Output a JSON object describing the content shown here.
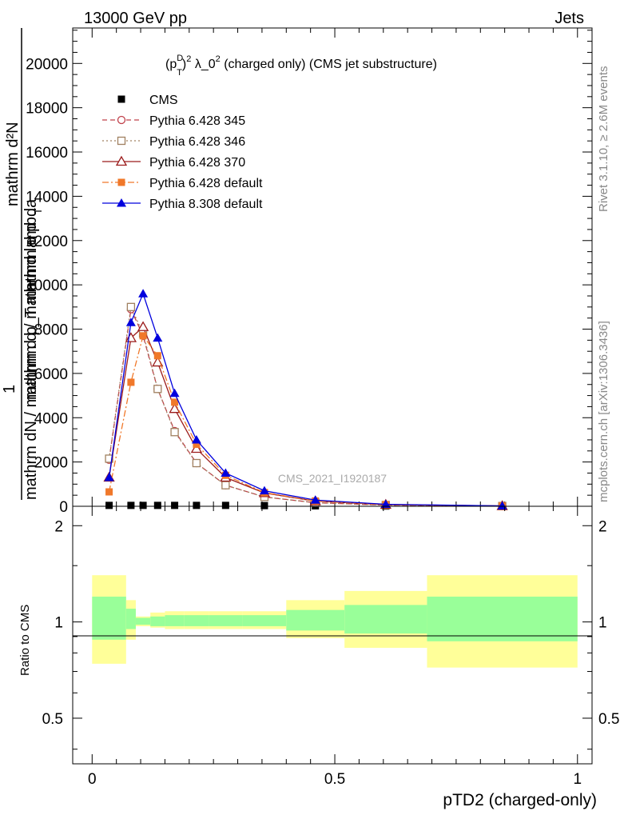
{
  "header": {
    "left": "13000 GeV pp",
    "right": "Jets"
  },
  "side_labels": {
    "rivet": "Rivet 3.1.10, ≥ 2.6M events",
    "mcplots": "mcplots.cern.ch [arXiv:1306.3436]"
  },
  "colors": {
    "cms": "#000000",
    "py345": "#c0404a",
    "py346": "#a08060",
    "py370": "#9b1b1b",
    "py6def": "#f0782a",
    "py8def": "#0000dd",
    "band_outer": "#ffff99",
    "band_inner": "#99ff99"
  },
  "chart_data": [
    {
      "type": "line",
      "title": "(p_T^D)^2 λ_0^2 (charged only) (CMS jet substructure)",
      "title_parts": {
        "base": "(p",
        "sup_d": "D",
        "sub_t": "T",
        "close": ")",
        "sup2": "2",
        "mid": " λ_0",
        "rest": " (charged only) (CMS jet substructure)"
      },
      "ylabel_lines": [
        "mathrm d²N",
        "mathrm d p",
        "mathrm d / mathrmd lambda",
        "1",
        "mathrm dN / mathrm d p_T"
      ],
      "ylabel_T": "T",
      "watermark": "CMS_2021_I1920187",
      "xlim": [
        -0.04,
        1.03
      ],
      "ylim": [
        0,
        21600
      ],
      "yticks": [
        0,
        2000,
        4000,
        6000,
        8000,
        10000,
        12000,
        14000,
        16000,
        18000,
        20000
      ],
      "ytick_labels": [
        "0",
        "2000",
        "4000",
        "6000",
        "8000",
        "10000",
        "12000",
        "14000",
        "16000",
        "18000",
        "20000"
      ],
      "legend_position": "top-left",
      "series": [
        {
          "name": "CMS",
          "color_key": "cms",
          "marker": "square",
          "dash": "",
          "x": [
            0.035,
            0.08,
            0.105,
            0.135,
            0.17,
            0.215,
            0.275,
            0.355,
            0.46,
            0.605,
            0.845
          ],
          "y": [
            40,
            40,
            40,
            40,
            40,
            40,
            40,
            30,
            20,
            10,
            5
          ]
        },
        {
          "name": "Pythia 6.428 345",
          "color_key": "py345",
          "marker": "circle-open",
          "dash": "6,4",
          "x": [
            0.035,
            0.08,
            0.105,
            0.135,
            0.17,
            0.215,
            0.275,
            0.355,
            0.46,
            0.605,
            0.845
          ],
          "y": [
            2100,
            8900,
            7700,
            5300,
            3400,
            1950,
            950,
            420,
            160,
            55,
            12
          ]
        },
        {
          "name": "Pythia 6.428 346",
          "color_key": "py346",
          "marker": "square-open",
          "dash": "2,3",
          "x": [
            0.035,
            0.08,
            0.105,
            0.135,
            0.17,
            0.215,
            0.275,
            0.355,
            0.46,
            0.605,
            0.845
          ],
          "y": [
            2150,
            9000,
            7800,
            5300,
            3350,
            1950,
            950,
            420,
            160,
            55,
            12
          ]
        },
        {
          "name": "Pythia 6.428 370",
          "color_key": "py370",
          "marker": "triangle-open",
          "dash": "",
          "x": [
            0.035,
            0.08,
            0.105,
            0.135,
            0.17,
            0.215,
            0.275,
            0.355,
            0.46,
            0.605,
            0.845
          ],
          "y": [
            1300,
            7600,
            8100,
            6500,
            4400,
            2600,
            1300,
            600,
            230,
            75,
            15
          ]
        },
        {
          "name": "Pythia 6.428 default",
          "color_key": "py6def",
          "marker": "square",
          "dash": "8,3,2,3",
          "x": [
            0.035,
            0.08,
            0.105,
            0.135,
            0.17,
            0.215,
            0.275,
            0.355,
            0.46,
            0.605,
            0.845
          ],
          "y": [
            650,
            5600,
            7700,
            6800,
            4700,
            2800,
            1400,
            620,
            240,
            80,
            15
          ]
        },
        {
          "name": "Pythia 8.308 default",
          "color_key": "py8def",
          "marker": "triangle",
          "dash": "",
          "x": [
            0.035,
            0.08,
            0.105,
            0.135,
            0.17,
            0.215,
            0.275,
            0.355,
            0.46,
            0.605,
            0.845
          ],
          "y": [
            1300,
            8300,
            9600,
            7600,
            5100,
            3000,
            1500,
            700,
            280,
            90,
            18
          ]
        }
      ]
    },
    {
      "type": "area",
      "xlabel": "pTD2 (charged-only)",
      "ylabel": "Ratio to CMS",
      "xlim": [
        -0.04,
        1.03
      ],
      "ylim": [
        0.36,
        2.3
      ],
      "log_y": true,
      "yticks": [
        0.5,
        1,
        2
      ],
      "ytick_labels": [
        "0.5",
        "1",
        "2"
      ],
      "xticks": [
        0,
        0.5,
        1
      ],
      "xtick_labels": [
        "0",
        "0.5",
        "1"
      ],
      "bins": [
        {
          "x0": 0.0,
          "x1": 0.07,
          "outer": [
            0.74,
            1.4
          ],
          "inner": [
            0.88,
            1.2
          ]
        },
        {
          "x0": 0.07,
          "x1": 0.09,
          "outer": [
            0.88,
            1.17
          ],
          "inner": [
            0.95,
            1.1
          ]
        },
        {
          "x0": 0.09,
          "x1": 0.12,
          "outer": [
            0.97,
            1.04
          ],
          "inner": [
            0.98,
            1.03
          ]
        },
        {
          "x0": 0.12,
          "x1": 0.15,
          "outer": [
            0.96,
            1.07
          ],
          "inner": [
            0.97,
            1.04
          ]
        },
        {
          "x0": 0.15,
          "x1": 0.19,
          "outer": [
            0.95,
            1.08
          ],
          "inner": [
            0.97,
            1.05
          ]
        },
        {
          "x0": 0.19,
          "x1": 0.24,
          "outer": [
            0.95,
            1.08
          ],
          "inner": [
            0.97,
            1.05
          ]
        },
        {
          "x0": 0.24,
          "x1": 0.31,
          "outer": [
            0.95,
            1.08
          ],
          "inner": [
            0.97,
            1.05
          ]
        },
        {
          "x0": 0.31,
          "x1": 0.4,
          "outer": [
            0.95,
            1.08
          ],
          "inner": [
            0.97,
            1.05
          ]
        },
        {
          "x0": 0.4,
          "x1": 0.52,
          "outer": [
            0.89,
            1.17
          ],
          "inner": [
            0.94,
            1.09
          ]
        },
        {
          "x0": 0.52,
          "x1": 0.69,
          "outer": [
            0.83,
            1.25
          ],
          "inner": [
            0.92,
            1.13
          ]
        },
        {
          "x0": 0.69,
          "x1": 1.0,
          "outer": [
            0.72,
            1.4
          ],
          "inner": [
            0.87,
            1.2
          ]
        }
      ]
    }
  ]
}
